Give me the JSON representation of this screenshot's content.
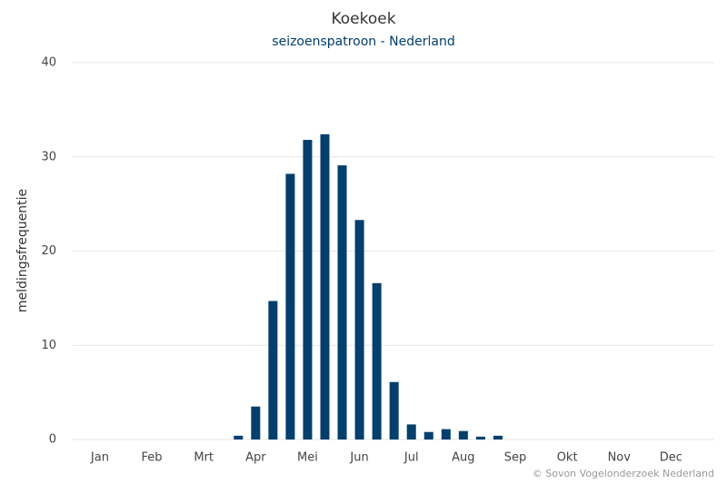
{
  "chart_data": {
    "type": "bar",
    "title": "Koekoek",
    "subtitle": "seizoenspatroon - Nederland",
    "y_label": "meldingsfrequentie",
    "credits": "© Sovon Vogelonderzoek Nederland",
    "categories": [
      "Jan",
      null,
      null,
      "Feb",
      null,
      null,
      "Mrt",
      null,
      null,
      "Apr",
      null,
      null,
      "Mei",
      null,
      null,
      "Jun",
      null,
      null,
      "Jul",
      null,
      null,
      "Aug",
      null,
      null,
      "Sep",
      null,
      null,
      "Okt",
      null,
      null,
      "Nov",
      null,
      null,
      "Dec",
      null,
      null
    ],
    "values": [
      0,
      0,
      0,
      0,
      0,
      0,
      0,
      0,
      0.4,
      3.5,
      14.7,
      28.2,
      31.8,
      32.4,
      29.1,
      23.3,
      16.6,
      6.1,
      1.6,
      0.8,
      1.1,
      0.9,
      0.3,
      0.4,
      0,
      0,
      0,
      0,
      0,
      0,
      0,
      0,
      0,
      0,
      0,
      0
    ],
    "color": "#003f6e",
    "ylim": [
      0,
      40
    ],
    "yticks": [
      0,
      10,
      20,
      30,
      40
    ],
    "grid": true
  }
}
